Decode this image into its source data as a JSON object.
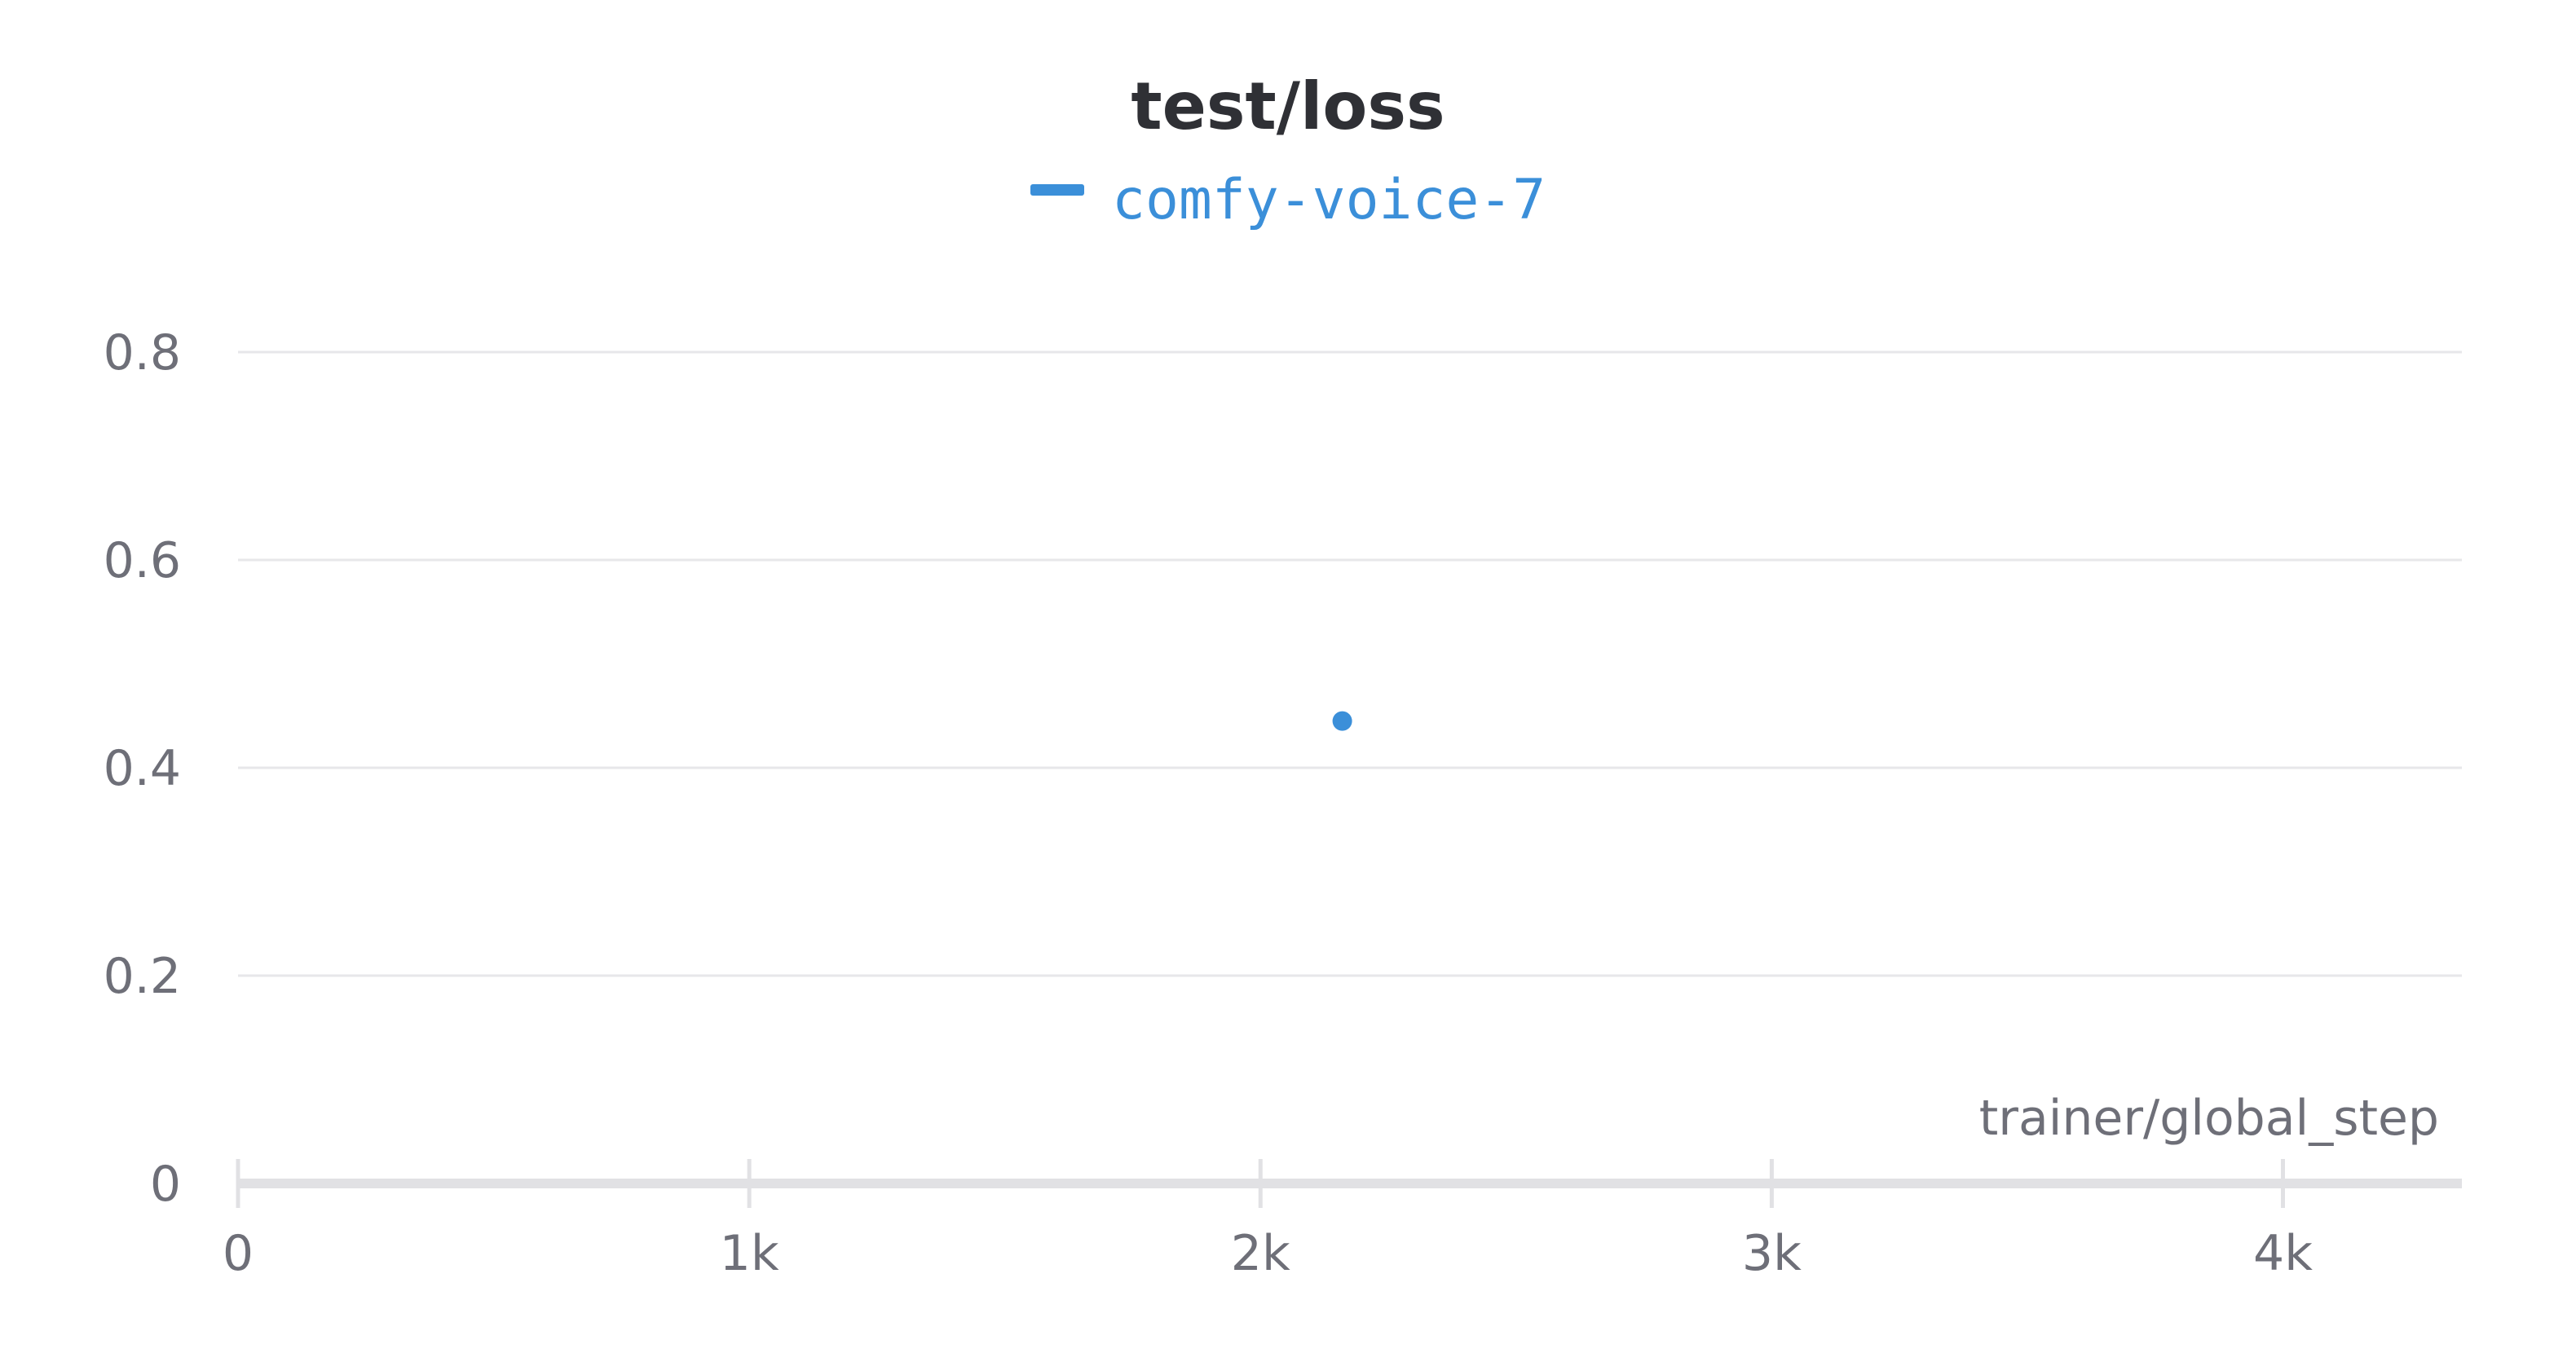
{
  "chart_data": {
    "type": "scatter",
    "title": "test/loss",
    "xlabel": "trainer/global_step",
    "ylabel": "",
    "xlim": [
      0,
      4350
    ],
    "ylim": [
      0,
      0.8
    ],
    "x_ticks": [
      {
        "value": 0,
        "label": "0"
      },
      {
        "value": 1000,
        "label": "1k"
      },
      {
        "value": 2000,
        "label": "2k"
      },
      {
        "value": 3000,
        "label": "3k"
      },
      {
        "value": 4000,
        "label": "4k"
      }
    ],
    "y_ticks": [
      {
        "value": 0,
        "label": "0"
      },
      {
        "value": 0.2,
        "label": "0.2"
      },
      {
        "value": 0.4,
        "label": "0.4"
      },
      {
        "value": 0.6,
        "label": "0.6"
      },
      {
        "value": 0.8,
        "label": "0.8"
      }
    ],
    "grid": true,
    "legend_position": "top-center",
    "series": [
      {
        "name": "comfy-voice-7",
        "color": "#3b8fd9",
        "points": [
          {
            "x": 2160,
            "y": 0.445
          }
        ]
      }
    ]
  }
}
